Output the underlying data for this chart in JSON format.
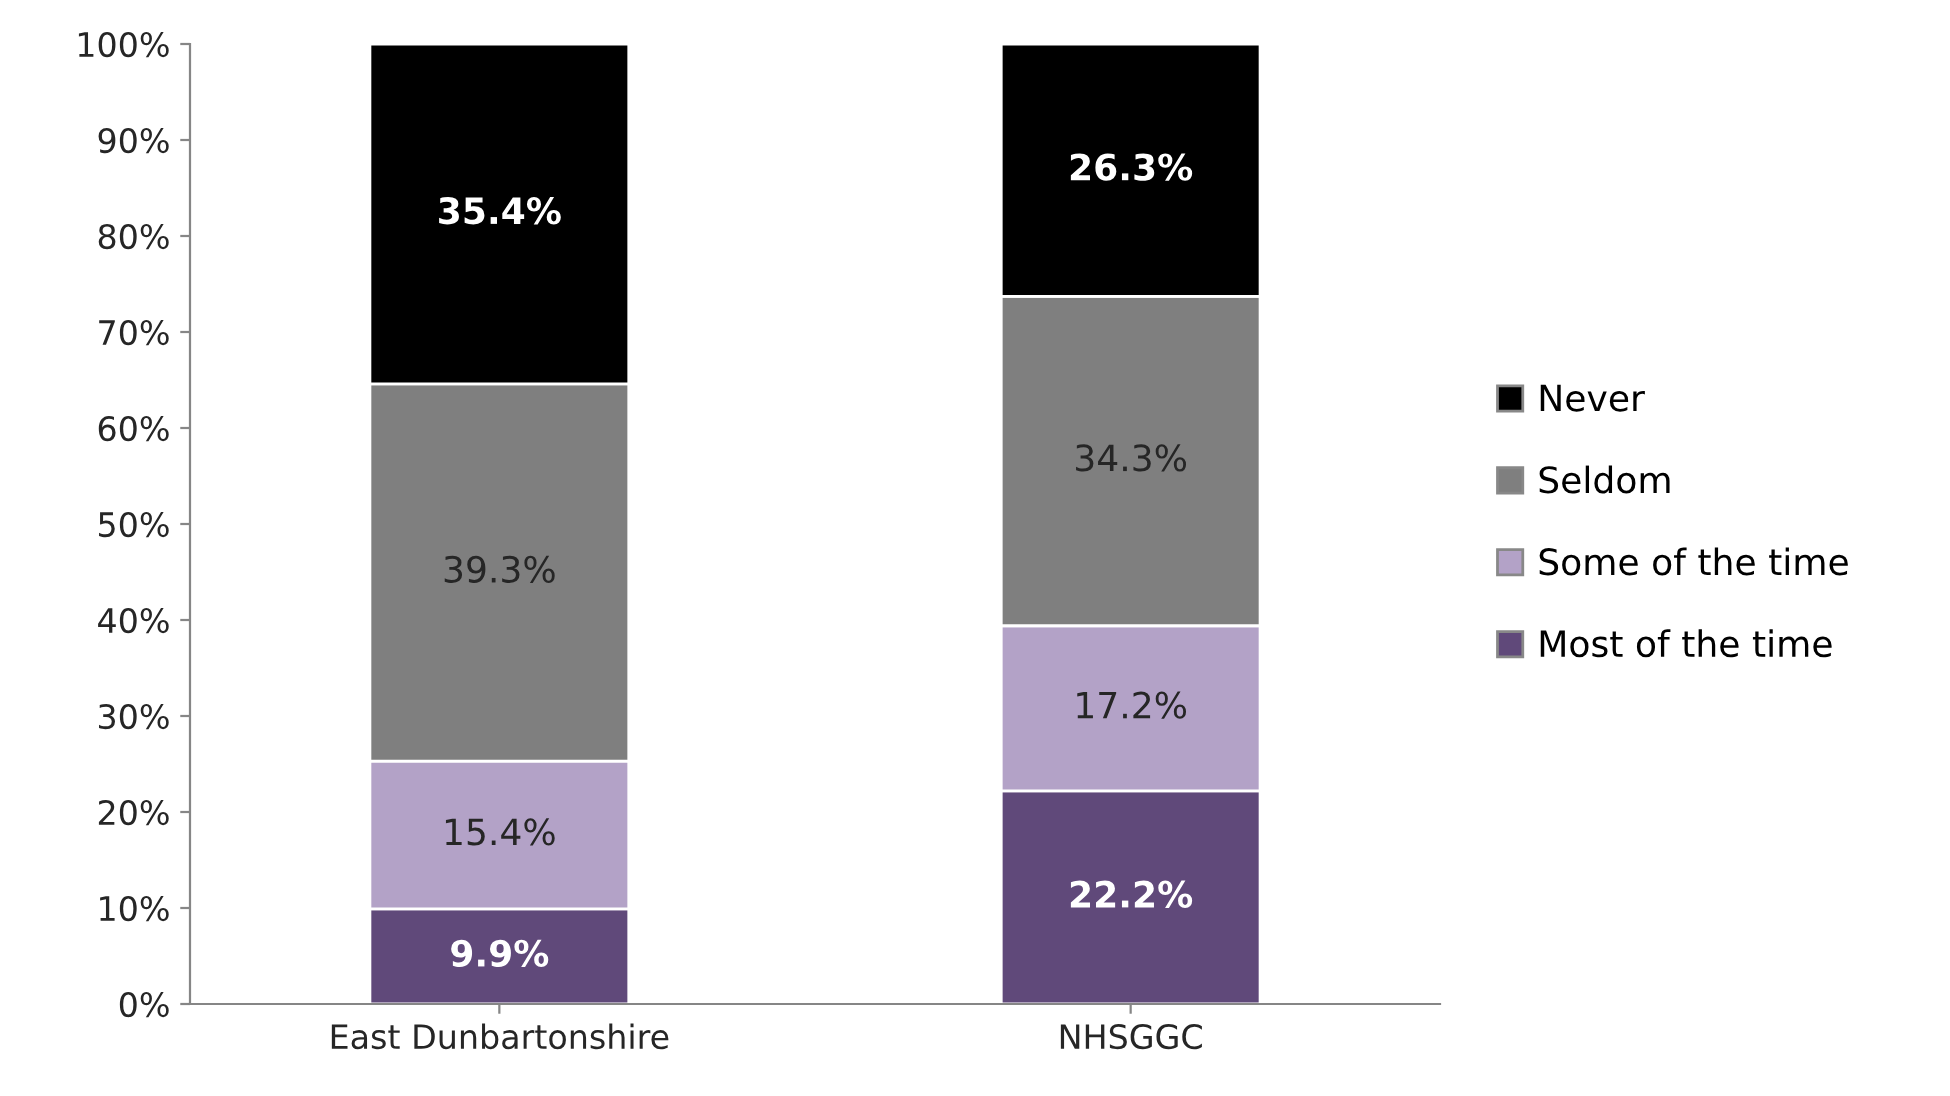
{
  "chart_data": {
    "type": "bar",
    "stacked": true,
    "categories": [
      "East Dunbartonshire",
      "NHSGGC"
    ],
    "series": [
      {
        "name": "Most of the time",
        "color": "#60497a",
        "values": [
          9.9,
          22.2
        ],
        "value_labels": [
          "9.9%",
          "22.2%"
        ]
      },
      {
        "name": "Some of the time",
        "color": "#b3a2c7",
        "values": [
          15.4,
          17.2
        ],
        "value_labels": [
          "15.4%",
          "17.2%"
        ]
      },
      {
        "name": "Seldom",
        "color": "#7f7f7f",
        "values": [
          39.3,
          34.3
        ],
        "value_labels": [
          "39.3%",
          "34.3%"
        ]
      },
      {
        "name": "Never",
        "color": "#000000",
        "values": [
          35.4,
          26.3
        ],
        "value_labels": [
          "35.4%",
          "26.3%"
        ]
      }
    ],
    "ylim": [
      0,
      100
    ],
    "yticks": [
      {
        "value": 0,
        "label": "0%"
      },
      {
        "value": 10,
        "label": "10%"
      },
      {
        "value": 20,
        "label": "20%"
      },
      {
        "value": 30,
        "label": "30%"
      },
      {
        "value": 40,
        "label": "40%"
      },
      {
        "value": 50,
        "label": "50%"
      },
      {
        "value": 60,
        "label": "60%"
      },
      {
        "value": 70,
        "label": "70%"
      },
      {
        "value": 80,
        "label": "80%"
      },
      {
        "value": 90,
        "label": "90%"
      },
      {
        "value": 100,
        "label": "100%"
      }
    ],
    "grid": false,
    "legend": "right"
  }
}
